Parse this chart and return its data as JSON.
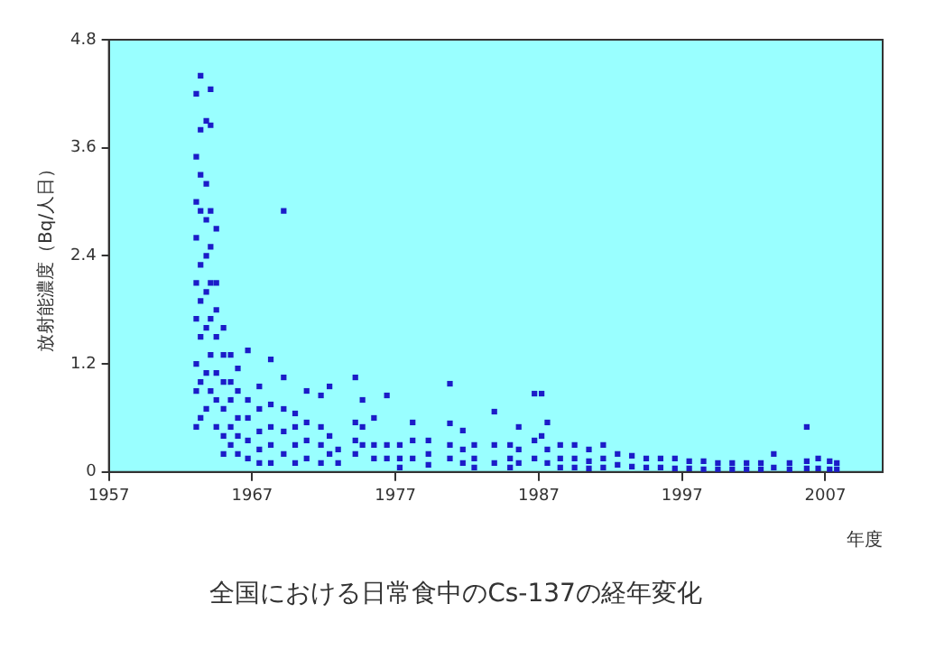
{
  "chart_data": {
    "type": "scatter",
    "title": "全国における日常食中のCs-137の経年変化",
    "xlabel": "年度",
    "ylabel": "放射能濃度（Bq/人日）",
    "xlim": [
      1957,
      2011
    ],
    "xticks": [
      1957,
      1967,
      1977,
      1987,
      1997,
      2007
    ],
    "ylim": [
      0,
      4.8
    ],
    "yticks": [
      0,
      1.2,
      2.4,
      3.6,
      4.8
    ],
    "grid": false,
    "legend": false,
    "marker": "square",
    "series": [
      {
        "color": "#1c1cc8",
        "x": [
          1963.1,
          1963.1,
          1963.1,
          1963.1,
          1963.1,
          1963.1,
          1963.1,
          1963.1,
          1963.1,
          1963.4,
          1963.4,
          1963.4,
          1963.4,
          1963.4,
          1963.4,
          1963.4,
          1963.4,
          1963.4,
          1963.8,
          1963.8,
          1963.8,
          1963.8,
          1963.8,
          1963.8,
          1963.8,
          1963.8,
          1964.1,
          1964.1,
          1964.1,
          1964.1,
          1964.1,
          1964.1,
          1964.1,
          1964.1,
          1964.5,
          1964.5,
          1964.5,
          1964.5,
          1964.5,
          1964.5,
          1964.5,
          1965,
          1965,
          1965,
          1965,
          1965,
          1965,
          1965.5,
          1965.5,
          1965.5,
          1965.5,
          1965.5,
          1966,
          1966,
          1966,
          1966,
          1966,
          1966.7,
          1966.7,
          1966.7,
          1966.7,
          1966.7,
          1967.5,
          1967.5,
          1967.5,
          1967.5,
          1967.5,
          1968.3,
          1968.3,
          1968.3,
          1968.3,
          1968.3,
          1969.2,
          1969.2,
          1969.2,
          1969.2,
          1969.2,
          1970,
          1970,
          1970,
          1970,
          1970.8,
          1970.8,
          1970.8,
          1970.8,
          1971.8,
          1971.8,
          1971.8,
          1971.8,
          1972.4,
          1972.4,
          1972.4,
          1973,
          1973,
          1974.2,
          1974.2,
          1974.2,
          1974.2,
          1974.7,
          1974.7,
          1974.7,
          1975.5,
          1975.5,
          1975.5,
          1976.4,
          1976.4,
          1976.4,
          1977.3,
          1977.3,
          1977.3,
          1978.2,
          1978.2,
          1978.2,
          1979.3,
          1979.3,
          1979.3,
          1980.8,
          1980.8,
          1980.8,
          1980.8,
          1981.7,
          1981.7,
          1981.7,
          1982.5,
          1982.5,
          1982.5,
          1983.9,
          1983.9,
          1983.9,
          1985,
          1985,
          1985,
          1985.6,
          1985.6,
          1985.6,
          1986.7,
          1986.7,
          1986.7,
          1987.2,
          1987.2,
          1987.6,
          1987.6,
          1987.6,
          1988.5,
          1988.5,
          1988.5,
          1989.5,
          1989.5,
          1989.5,
          1990.5,
          1990.5,
          1990.5,
          1991.5,
          1991.5,
          1991.5,
          1992.5,
          1992.5,
          1993.5,
          1993.5,
          1994.5,
          1994.5,
          1995.5,
          1995.5,
          1996.5,
          1996.5,
          1997.5,
          1997.5,
          1998.5,
          1998.5,
          1999.5,
          1999.5,
          2000.5,
          2000.5,
          2001.5,
          2001.5,
          2002.5,
          2002.5,
          2003.4,
          2003.4,
          2004.5,
          2004.5,
          2005.7,
          2005.7,
          2005.7,
          2006.5,
          2006.5,
          2007.3,
          2007.3,
          2007.8,
          2007.8
        ],
        "values": [
          4.2,
          3.5,
          3.0,
          2.6,
          2.1,
          1.7,
          1.2,
          0.9,
          0.5,
          4.4,
          3.8,
          3.3,
          2.9,
          2.3,
          1.9,
          1.5,
          1.0,
          0.6,
          3.9,
          3.2,
          2.8,
          2.4,
          2.0,
          1.6,
          1.1,
          0.7,
          4.25,
          3.85,
          2.9,
          2.5,
          2.1,
          1.7,
          1.3,
          0.9,
          2.7,
          2.1,
          1.8,
          1.5,
          1.1,
          0.8,
          0.5,
          1.6,
          1.3,
          1.0,
          0.7,
          0.4,
          0.2,
          1.3,
          1.0,
          0.8,
          0.5,
          0.3,
          1.15,
          0.9,
          0.6,
          0.4,
          0.2,
          1.35,
          0.8,
          0.6,
          0.35,
          0.15,
          0.95,
          0.7,
          0.45,
          0.25,
          0.1,
          1.25,
          0.75,
          0.5,
          0.3,
          0.1,
          2.9,
          1.05,
          0.7,
          0.45,
          0.2,
          0.65,
          0.5,
          0.3,
          0.1,
          0.9,
          0.55,
          0.35,
          0.15,
          0.85,
          0.5,
          0.3,
          0.1,
          0.95,
          0.4,
          0.2,
          0.25,
          0.1,
          1.05,
          0.55,
          0.35,
          0.2,
          0.8,
          0.5,
          0.3,
          0.6,
          0.3,
          0.15,
          0.85,
          0.3,
          0.15,
          0.3,
          0.15,
          0.05,
          0.55,
          0.35,
          0.15,
          0.35,
          0.2,
          0.08,
          0.98,
          0.54,
          0.3,
          0.15,
          0.46,
          0.25,
          0.1,
          0.3,
          0.15,
          0.05,
          0.67,
          0.3,
          0.1,
          0.3,
          0.15,
          0.05,
          0.5,
          0.25,
          0.1,
          0.87,
          0.35,
          0.15,
          0.87,
          0.4,
          0.55,
          0.25,
          0.1,
          0.3,
          0.15,
          0.05,
          0.3,
          0.15,
          0.05,
          0.25,
          0.12,
          0.04,
          0.3,
          0.15,
          0.05,
          0.2,
          0.08,
          0.18,
          0.06,
          0.15,
          0.05,
          0.15,
          0.05,
          0.15,
          0.04,
          0.12,
          0.04,
          0.12,
          0.03,
          0.1,
          0.03,
          0.1,
          0.03,
          0.1,
          0.03,
          0.1,
          0.03,
          0.2,
          0.05,
          0.1,
          0.03,
          0.5,
          0.12,
          0.04,
          0.15,
          0.04,
          0.12,
          0.03,
          0.1,
          0.03
        ]
      }
    ]
  }
}
